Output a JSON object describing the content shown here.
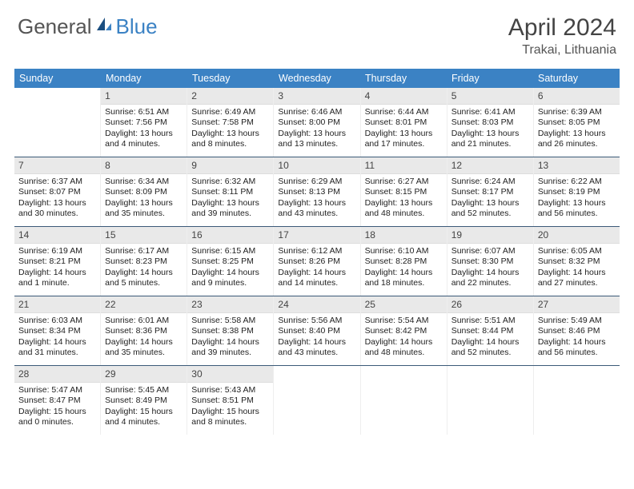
{
  "logo": {
    "text1": "General",
    "text2": "Blue"
  },
  "title": "April 2024",
  "location": "Trakai, Lithuania",
  "weekdays": [
    "Sunday",
    "Monday",
    "Tuesday",
    "Wednesday",
    "Thursday",
    "Friday",
    "Saturday"
  ],
  "colors": {
    "header_bg": "#3b82c4",
    "header_text": "#ffffff",
    "daynum_bg": "#e9e9e9",
    "week_divider": "#3b5a78",
    "logo_gray": "#555555",
    "logo_blue": "#3b82c4"
  },
  "weeks": [
    [
      {
        "n": "",
        "sunrise": "",
        "sunset": "",
        "daylight": ""
      },
      {
        "n": "1",
        "sunrise": "Sunrise: 6:51 AM",
        "sunset": "Sunset: 7:56 PM",
        "daylight": "Daylight: 13 hours and 4 minutes."
      },
      {
        "n": "2",
        "sunrise": "Sunrise: 6:49 AM",
        "sunset": "Sunset: 7:58 PM",
        "daylight": "Daylight: 13 hours and 8 minutes."
      },
      {
        "n": "3",
        "sunrise": "Sunrise: 6:46 AM",
        "sunset": "Sunset: 8:00 PM",
        "daylight": "Daylight: 13 hours and 13 minutes."
      },
      {
        "n": "4",
        "sunrise": "Sunrise: 6:44 AM",
        "sunset": "Sunset: 8:01 PM",
        "daylight": "Daylight: 13 hours and 17 minutes."
      },
      {
        "n": "5",
        "sunrise": "Sunrise: 6:41 AM",
        "sunset": "Sunset: 8:03 PM",
        "daylight": "Daylight: 13 hours and 21 minutes."
      },
      {
        "n": "6",
        "sunrise": "Sunrise: 6:39 AM",
        "sunset": "Sunset: 8:05 PM",
        "daylight": "Daylight: 13 hours and 26 minutes."
      }
    ],
    [
      {
        "n": "7",
        "sunrise": "Sunrise: 6:37 AM",
        "sunset": "Sunset: 8:07 PM",
        "daylight": "Daylight: 13 hours and 30 minutes."
      },
      {
        "n": "8",
        "sunrise": "Sunrise: 6:34 AM",
        "sunset": "Sunset: 8:09 PM",
        "daylight": "Daylight: 13 hours and 35 minutes."
      },
      {
        "n": "9",
        "sunrise": "Sunrise: 6:32 AM",
        "sunset": "Sunset: 8:11 PM",
        "daylight": "Daylight: 13 hours and 39 minutes."
      },
      {
        "n": "10",
        "sunrise": "Sunrise: 6:29 AM",
        "sunset": "Sunset: 8:13 PM",
        "daylight": "Daylight: 13 hours and 43 minutes."
      },
      {
        "n": "11",
        "sunrise": "Sunrise: 6:27 AM",
        "sunset": "Sunset: 8:15 PM",
        "daylight": "Daylight: 13 hours and 48 minutes."
      },
      {
        "n": "12",
        "sunrise": "Sunrise: 6:24 AM",
        "sunset": "Sunset: 8:17 PM",
        "daylight": "Daylight: 13 hours and 52 minutes."
      },
      {
        "n": "13",
        "sunrise": "Sunrise: 6:22 AM",
        "sunset": "Sunset: 8:19 PM",
        "daylight": "Daylight: 13 hours and 56 minutes."
      }
    ],
    [
      {
        "n": "14",
        "sunrise": "Sunrise: 6:19 AM",
        "sunset": "Sunset: 8:21 PM",
        "daylight": "Daylight: 14 hours and 1 minute."
      },
      {
        "n": "15",
        "sunrise": "Sunrise: 6:17 AM",
        "sunset": "Sunset: 8:23 PM",
        "daylight": "Daylight: 14 hours and 5 minutes."
      },
      {
        "n": "16",
        "sunrise": "Sunrise: 6:15 AM",
        "sunset": "Sunset: 8:25 PM",
        "daylight": "Daylight: 14 hours and 9 minutes."
      },
      {
        "n": "17",
        "sunrise": "Sunrise: 6:12 AM",
        "sunset": "Sunset: 8:26 PM",
        "daylight": "Daylight: 14 hours and 14 minutes."
      },
      {
        "n": "18",
        "sunrise": "Sunrise: 6:10 AM",
        "sunset": "Sunset: 8:28 PM",
        "daylight": "Daylight: 14 hours and 18 minutes."
      },
      {
        "n": "19",
        "sunrise": "Sunrise: 6:07 AM",
        "sunset": "Sunset: 8:30 PM",
        "daylight": "Daylight: 14 hours and 22 minutes."
      },
      {
        "n": "20",
        "sunrise": "Sunrise: 6:05 AM",
        "sunset": "Sunset: 8:32 PM",
        "daylight": "Daylight: 14 hours and 27 minutes."
      }
    ],
    [
      {
        "n": "21",
        "sunrise": "Sunrise: 6:03 AM",
        "sunset": "Sunset: 8:34 PM",
        "daylight": "Daylight: 14 hours and 31 minutes."
      },
      {
        "n": "22",
        "sunrise": "Sunrise: 6:01 AM",
        "sunset": "Sunset: 8:36 PM",
        "daylight": "Daylight: 14 hours and 35 minutes."
      },
      {
        "n": "23",
        "sunrise": "Sunrise: 5:58 AM",
        "sunset": "Sunset: 8:38 PM",
        "daylight": "Daylight: 14 hours and 39 minutes."
      },
      {
        "n": "24",
        "sunrise": "Sunrise: 5:56 AM",
        "sunset": "Sunset: 8:40 PM",
        "daylight": "Daylight: 14 hours and 43 minutes."
      },
      {
        "n": "25",
        "sunrise": "Sunrise: 5:54 AM",
        "sunset": "Sunset: 8:42 PM",
        "daylight": "Daylight: 14 hours and 48 minutes."
      },
      {
        "n": "26",
        "sunrise": "Sunrise: 5:51 AM",
        "sunset": "Sunset: 8:44 PM",
        "daylight": "Daylight: 14 hours and 52 minutes."
      },
      {
        "n": "27",
        "sunrise": "Sunrise: 5:49 AM",
        "sunset": "Sunset: 8:46 PM",
        "daylight": "Daylight: 14 hours and 56 minutes."
      }
    ],
    [
      {
        "n": "28",
        "sunrise": "Sunrise: 5:47 AM",
        "sunset": "Sunset: 8:47 PM",
        "daylight": "Daylight: 15 hours and 0 minutes."
      },
      {
        "n": "29",
        "sunrise": "Sunrise: 5:45 AM",
        "sunset": "Sunset: 8:49 PM",
        "daylight": "Daylight: 15 hours and 4 minutes."
      },
      {
        "n": "30",
        "sunrise": "Sunrise: 5:43 AM",
        "sunset": "Sunset: 8:51 PM",
        "daylight": "Daylight: 15 hours and 8 minutes."
      },
      {
        "n": "",
        "sunrise": "",
        "sunset": "",
        "daylight": ""
      },
      {
        "n": "",
        "sunrise": "",
        "sunset": "",
        "daylight": ""
      },
      {
        "n": "",
        "sunrise": "",
        "sunset": "",
        "daylight": ""
      },
      {
        "n": "",
        "sunrise": "",
        "sunset": "",
        "daylight": ""
      }
    ]
  ]
}
